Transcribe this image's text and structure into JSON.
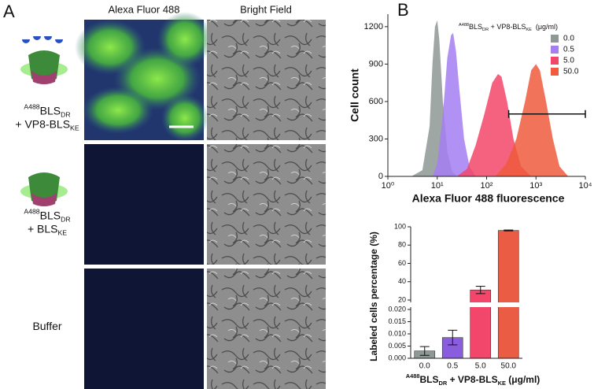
{
  "panel_labels": [
    "A",
    "B"
  ],
  "microscopy": {
    "columns": [
      "Alexa Fluor 488",
      "Bright Field"
    ],
    "rows": [
      {
        "label": [
          [
            {
              "text": "A488",
              "style": "sup"
            },
            {
              "text": "BLS",
              "style": "normal"
            },
            {
              "text": "DR",
              "style": "sub"
            }
          ],
          [
            {
              "text": "+ VP8-BLS",
              "style": "normal"
            },
            {
              "text": "KE",
              "style": "sub"
            }
          ]
        ]
      },
      {
        "label": [
          [
            {
              "text": "A488",
              "style": "sup"
            },
            {
              "text": "BLS",
              "style": "normal"
            },
            {
              "text": "DR",
              "style": "sub"
            }
          ],
          [
            {
              "text": "+ BLS",
              "style": "normal"
            },
            {
              "text": "KE",
              "style": "sub"
            }
          ]
        ]
      },
      {
        "label": [
          [
            {
              "text": "Buffer",
              "style": "normal"
            }
          ]
        ]
      }
    ]
  },
  "chart_data": [
    {
      "type": "area",
      "y_label": "Cell count",
      "x_label": "Alexa Fluor 488 fluorescence",
      "xscale": "log",
      "xlim": [
        1,
        10000
      ],
      "xticks": [
        {
          "value": 1,
          "label": "10⁰"
        },
        {
          "value": 10,
          "label": "10¹"
        },
        {
          "value": 100,
          "label": "10²"
        },
        {
          "value": 1000,
          "label": "10³"
        },
        {
          "value": 10000,
          "label": "10⁴"
        }
      ],
      "ylim": [
        0,
        1300
      ],
      "yticks": [
        0,
        300,
        600,
        900,
        1200
      ],
      "legend_title": [
        {
          "text": "A488",
          "style": "sup"
        },
        {
          "text": "BLS",
          "style": "normal"
        },
        {
          "text": "DR",
          "style": "sub"
        },
        {
          "text": " + VP8-BLS",
          "style": "normal"
        },
        {
          "text": "KE",
          "style": "sub"
        },
        {
          "text": "  (μg/ml)",
          "style": "normal"
        }
      ],
      "legend_position": "upper right",
      "series": [
        {
          "name": "0.0",
          "color": "#8e9894",
          "x": [
            3,
            5,
            7,
            8,
            9,
            10,
            11,
            13,
            16,
            20,
            25
          ],
          "values": [
            0,
            50,
            400,
            900,
            1200,
            1250,
            1100,
            600,
            200,
            40,
            0
          ]
        },
        {
          "name": "0.5",
          "color": "#a57ef2",
          "x": [
            8,
            10,
            13,
            16,
            19,
            21,
            24,
            28,
            35,
            45,
            60
          ],
          "values": [
            0,
            100,
            500,
            950,
            1130,
            1150,
            1000,
            700,
            300,
            80,
            0
          ]
        },
        {
          "name": "5.0",
          "color": "#f2476a",
          "x": [
            25,
            40,
            60,
            90,
            130,
            170,
            200,
            260,
            350,
            500,
            800
          ],
          "values": [
            0,
            60,
            250,
            500,
            750,
            820,
            800,
            600,
            300,
            80,
            0
          ]
        },
        {
          "name": "50.0",
          "color": "#ef5b3c",
          "x": [
            150,
            250,
            400,
            600,
            800,
            1000,
            1200,
            1600,
            2200,
            3000,
            4500
          ],
          "values": [
            0,
            100,
            300,
            600,
            850,
            900,
            850,
            600,
            300,
            80,
            0
          ]
        }
      ],
      "gate": {
        "x": [
          280,
          10000
        ],
        "y": 500
      }
    },
    {
      "type": "bar",
      "y_label": "Labeled cells percentage (%)",
      "x_label": [
        {
          "text": "A488",
          "style": "sup"
        },
        {
          "text": "BLS",
          "style": "normal"
        },
        {
          "text": "DR",
          "style": "sub"
        },
        {
          "text": " + VP8-BLS",
          "style": "normal"
        },
        {
          "text": "KE",
          "style": "sub"
        },
        {
          "text": " (μg/ml)",
          "style": "normal"
        }
      ],
      "categories": [
        "0.0",
        "0.5",
        "5.0",
        "50.0"
      ],
      "values": [
        0.003,
        0.0085,
        31,
        96
      ],
      "errors": [
        0.0018,
        0.003,
        4,
        0.5
      ],
      "colors": [
        "#8e9894",
        "#8a5ce0",
        "#f2476a",
        "#ea5d44"
      ],
      "ylim": [
        0,
        100
      ],
      "axis_break": [
        0.02,
        20
      ],
      "yticks": [
        {
          "value": 0,
          "label": "0.000"
        },
        {
          "value": 0.005,
          "label": "0.005"
        },
        {
          "value": 0.01,
          "label": "0.010"
        },
        {
          "value": 0.015,
          "label": "0.015"
        },
        {
          "value": 0.02,
          "label": "0.020"
        },
        20,
        40,
        60,
        80,
        100
      ]
    }
  ]
}
